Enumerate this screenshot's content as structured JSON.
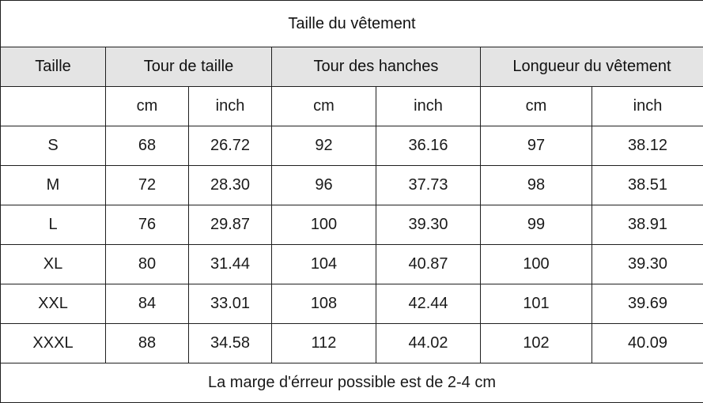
{
  "title": "Taille du vêtement",
  "headers": {
    "size": "Taille",
    "waist": "Tour de taille",
    "hips": "Tour des hanches",
    "length": "Longueur du vêtement"
  },
  "units": {
    "size": "",
    "waist_cm": "cm",
    "waist_inch": "inch",
    "hips_cm": "cm",
    "hips_inch": "inch",
    "length_cm": "cm",
    "length_inch": "inch"
  },
  "rows": [
    {
      "size": "S",
      "waist_cm": "68",
      "waist_inch": "26.72",
      "hips_cm": "92",
      "hips_inch": "36.16",
      "length_cm": "97",
      "length_inch": "38.12"
    },
    {
      "size": "M",
      "waist_cm": "72",
      "waist_inch": "28.30",
      "hips_cm": "96",
      "hips_inch": "37.73",
      "length_cm": "98",
      "length_inch": "38.51"
    },
    {
      "size": "L",
      "waist_cm": "76",
      "waist_inch": "29.87",
      "hips_cm": "100",
      "hips_inch": "39.30",
      "length_cm": "99",
      "length_inch": "38.91"
    },
    {
      "size": "XL",
      "waist_cm": "80",
      "waist_inch": "31.44",
      "hips_cm": "104",
      "hips_inch": "40.87",
      "length_cm": "100",
      "length_inch": "39.30"
    },
    {
      "size": "XXL",
      "waist_cm": "84",
      "waist_inch": "33.01",
      "hips_cm": "108",
      "hips_inch": "42.44",
      "length_cm": "101",
      "length_inch": "39.69"
    },
    {
      "size": "XXXL",
      "waist_cm": "88",
      "waist_inch": "34.58",
      "hips_cm": "112",
      "hips_inch": "44.02",
      "length_cm": "102",
      "length_inch": "40.09"
    }
  ],
  "footer": "La marge d'érreur possible est de 2-4 cm",
  "colors": {
    "header_background": "#e4e4e4",
    "border": "#1f1f1f",
    "text": "#1a1a1a"
  }
}
